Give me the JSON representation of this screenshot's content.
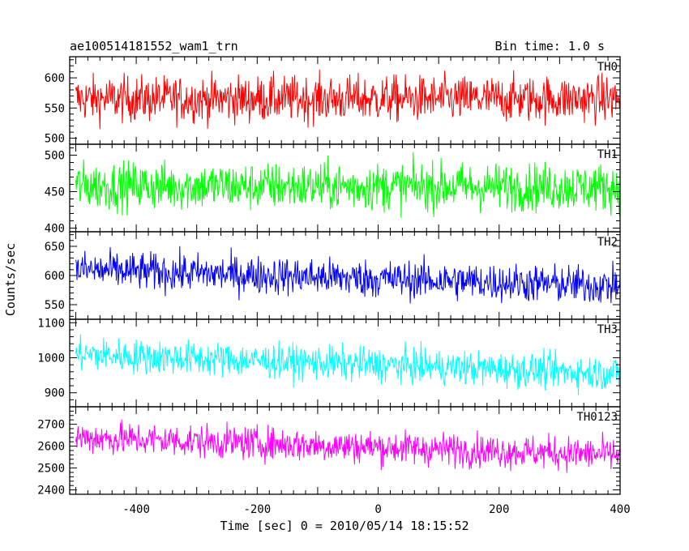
{
  "header": {
    "title": "ae100514181552_wam1_trn",
    "bin_time": "Bin time: 1.0 s"
  },
  "chart_data": {
    "type": "line",
    "xlabel": "Time [sec] 0 = 2010/05/14 18:15:52",
    "ylabel": "Counts/sec",
    "xlim": [
      -510,
      400
    ],
    "xticks": [
      -400,
      -200,
      0,
      200,
      400
    ],
    "bin_time_s": 1.0,
    "panels": [
      {
        "name": "TH0",
        "color": "#ff0000",
        "ylim": [
          490,
          635
        ],
        "yticks": [
          500,
          550,
          600
        ],
        "mean_start": 565,
        "mean_end": 565,
        "noise_amplitude": 35
      },
      {
        "name": "TH1",
        "color": "#00ff00",
        "ylim": [
          395,
          515
        ],
        "yticks": [
          400,
          450,
          500
        ],
        "mean_start": 458,
        "mean_end": 456,
        "noise_amplitude": 30
      },
      {
        "name": "TH2",
        "color": "#0000ff",
        "ylim": [
          525,
          675
        ],
        "yticks": [
          550,
          600,
          650
        ],
        "mean_start": 610,
        "mean_end": 582,
        "noise_amplitude": 30
      },
      {
        "name": "TH3",
        "color": "#00ffff",
        "ylim": [
          860,
          1110
        ],
        "yticks": [
          900,
          1000,
          1100
        ],
        "mean_start": 1010,
        "mean_end": 955,
        "noise_amplitude": 45
      },
      {
        "name": "TH0123",
        "color": "#ff00ff",
        "ylim": [
          2380,
          2780
        ],
        "yticks": [
          2400,
          2500,
          2600,
          2700
        ],
        "mean_start": 2640,
        "mean_end": 2560,
        "noise_amplitude": 70
      }
    ]
  }
}
